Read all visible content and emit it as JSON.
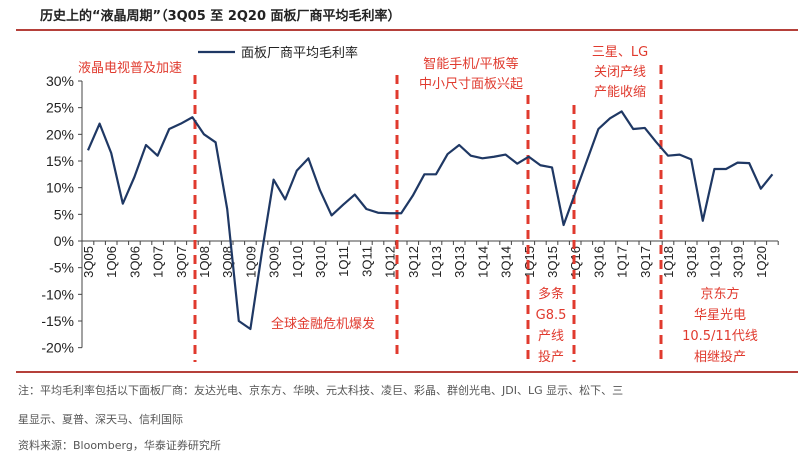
{
  "title": "历史上的“液晶周期”（3Q05 至 2Q20 面板厂商平均毛利率）",
  "note_line1": "注：平均毛利率包括以下面板厂商：友达光电、京东方、华映、元太科技、凌巨、彩晶、群创光电、JDI、LG 显示、松下、三",
  "note_line2": "星显示、夏普、深天马、信利国际",
  "source": "资料来源：Bloomberg，华泰证券研究所",
  "colors": {
    "line": "#1f3864",
    "annotation": "#e03a2e",
    "rule": "#b5403a"
  },
  "chart_data": {
    "type": "line",
    "title": "历史上的“液晶周期”（3Q05 至 2Q20 面板厂商平均毛利率）",
    "xlabel": "",
    "ylabel": "",
    "ylim": [
      -20,
      30
    ],
    "yticks": [
      "30%",
      "25%",
      "20%",
      "15%",
      "10%",
      "5%",
      "0%",
      "-5%",
      "-10%",
      "-15%",
      "-20%"
    ],
    "ytick_values": [
      30,
      25,
      20,
      15,
      10,
      5,
      0,
      -5,
      -10,
      -15,
      -20
    ],
    "legend": "面板厂商平均毛利率",
    "legend_position": "top-center",
    "x": [
      "3Q05",
      "4Q05",
      "1Q06",
      "2Q06",
      "3Q06",
      "4Q06",
      "1Q07",
      "2Q07",
      "3Q07",
      "4Q07",
      "1Q08",
      "2Q08",
      "3Q08",
      "4Q08",
      "1Q09",
      "2Q09",
      "3Q09",
      "4Q09",
      "1Q10",
      "2Q10",
      "3Q10",
      "4Q10",
      "1Q11",
      "2Q11",
      "3Q11",
      "4Q11",
      "1Q12",
      "2Q12",
      "3Q12",
      "4Q12",
      "1Q13",
      "2Q13",
      "3Q13",
      "4Q13",
      "1Q14",
      "2Q14",
      "3Q14",
      "4Q14",
      "1Q15",
      "2Q15",
      "3Q15",
      "4Q15",
      "1Q16",
      "2Q16",
      "3Q16",
      "4Q16",
      "1Q17",
      "2Q17",
      "3Q17",
      "4Q17",
      "1Q18",
      "2Q18",
      "3Q18",
      "4Q18",
      "1Q19",
      "2Q19",
      "3Q19",
      "4Q19",
      "1Q20",
      "2Q20"
    ],
    "series": [
      {
        "name": "面板厂商平均毛利率",
        "values": [
          17,
          22,
          16.5,
          7,
          12,
          18,
          16,
          21,
          22,
          23.2,
          20,
          18.5,
          6,
          -15,
          -16.5,
          -2,
          11.5,
          7.8,
          13.2,
          15.5,
          9.5,
          4.8,
          6.8,
          8.7,
          6,
          5.3,
          5.2,
          5.2,
          8.5,
          12.5,
          12.5,
          16.3,
          18,
          16,
          15.5,
          15.8,
          16.2,
          14.5,
          15.8,
          14.2,
          13.8,
          3,
          9,
          15,
          21,
          23,
          24.3,
          21,
          21.2,
          18.5,
          16,
          16.2,
          15.3,
          3.8,
          13.5,
          13.5,
          14.7,
          14.6,
          9.8,
          12.5
        ]
      }
    ],
    "xtick_labels": [
      "3Q05",
      "1Q06",
      "3Q06",
      "1Q07",
      "3Q07",
      "1Q08",
      "3Q08",
      "1Q09",
      "3Q09",
      "1Q10",
      "3Q10",
      "1Q11",
      "3Q11",
      "1Q12",
      "3Q12",
      "1Q13",
      "3Q13",
      "1Q14",
      "3Q14",
      "1Q15",
      "3Q15",
      "1Q16",
      "3Q16",
      "1Q17",
      "3Q17",
      "1Q18",
      "3Q18",
      "1Q19",
      "3Q19",
      "1Q20"
    ],
    "annotations": [
      {
        "lines": [
          "液晶电视普及加速"
        ]
      },
      {
        "lines": [
          "全球金融危机爆发"
        ]
      },
      {
        "lines": [
          "智能手机/平板等",
          "中小尺寸面板兴起"
        ]
      },
      {
        "lines": [
          "多条",
          "G8.5",
          "产线",
          "投产"
        ]
      },
      {
        "lines": [
          "三星、LG",
          "关闭产线",
          "产能收缩"
        ]
      },
      {
        "lines": [
          "京东方",
          "华星光电",
          "10.5/11代线",
          "相继投产"
        ]
      }
    ],
    "event_markers": [
      "4Q07/1Q08",
      "2Q12",
      "1Q15",
      "1Q16",
      "1Q18"
    ]
  }
}
